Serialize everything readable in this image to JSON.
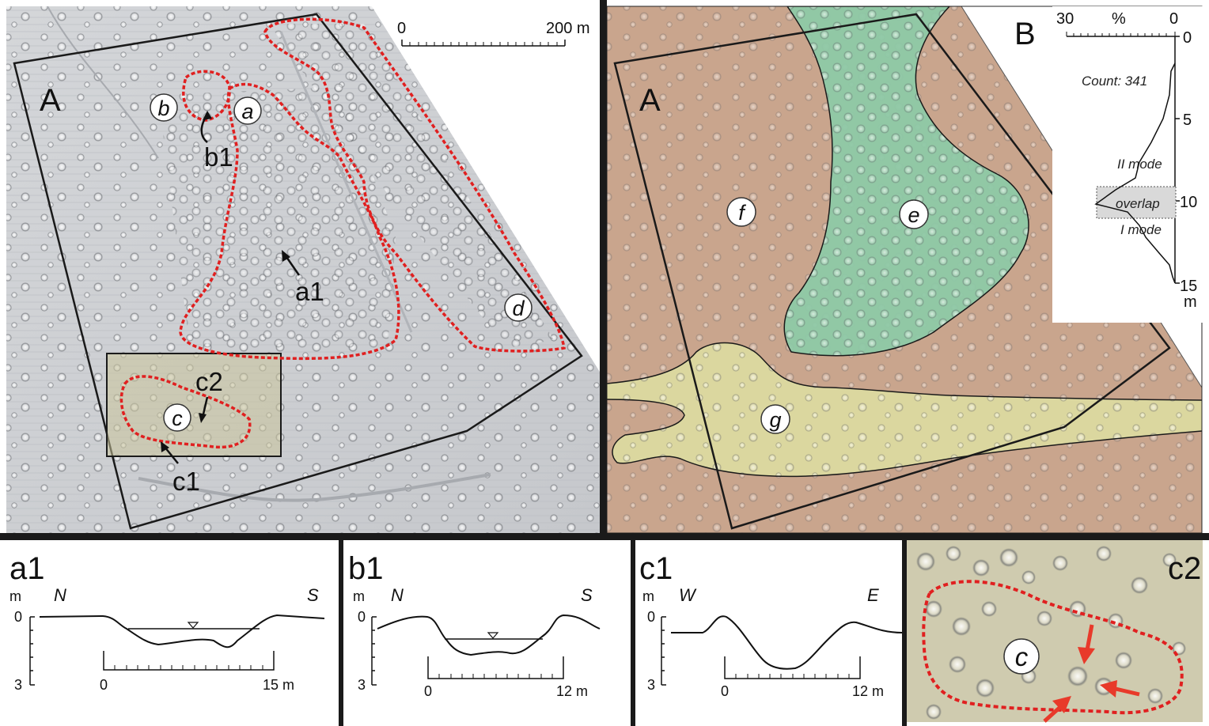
{
  "panel_a": {
    "panel_label": "A",
    "scale": {
      "start": "0",
      "end": "200 m"
    },
    "area_labels": {
      "a": "a",
      "b": "b",
      "c": "c",
      "d": "d"
    },
    "profile_labels": {
      "a1": "a1",
      "b1": "b1",
      "c1": "c1",
      "c2": "c2"
    }
  },
  "panel_a_right": {
    "panel_label": "A",
    "zone_labels": {
      "e": "e",
      "f": "f",
      "g": "g"
    },
    "colors": {
      "f": "#c9a58d",
      "e": "#8ec9a6",
      "g": "#dcd9a0"
    }
  },
  "panel_b": {
    "panel_label": "B",
    "top_axis": {
      "left": "30",
      "unit": "%",
      "right": "0"
    },
    "depth_ticks": [
      "0",
      "5",
      "10",
      "15"
    ],
    "depth_unit": "m",
    "count": "Count: 341",
    "mode_ii": "II mode",
    "overlap": "overlap",
    "mode_i": "I mode"
  },
  "profiles": [
    {
      "label": "a1",
      "left_dir": "N",
      "right_dir": "S",
      "unit": "m",
      "top_tick": "0",
      "bottom_tick": "3",
      "scale_start": "0",
      "scale_end": "15 m"
    },
    {
      "label": "b1",
      "left_dir": "N",
      "right_dir": "S",
      "unit": "m",
      "top_tick": "0",
      "bottom_tick": "3",
      "scale_start": "0",
      "scale_end": "12 m"
    },
    {
      "label": "c1",
      "left_dir": "W",
      "right_dir": "E",
      "unit": "m",
      "top_tick": "0",
      "bottom_tick": "3",
      "scale_start": "0",
      "scale_end": "12 m"
    }
  ],
  "inset_c2": {
    "label": "c2",
    "area_label": "c"
  },
  "colors": {
    "boundary": "#e02020",
    "arrow": "#e83a2a"
  }
}
